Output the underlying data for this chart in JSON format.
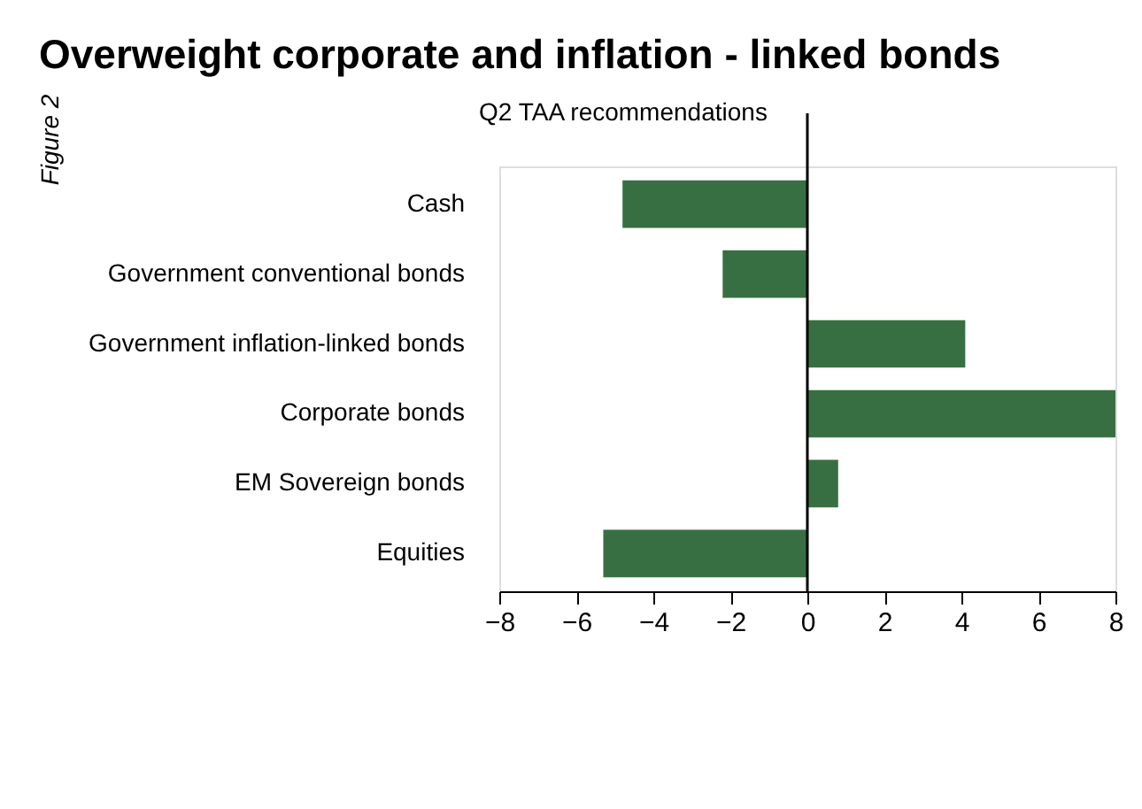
{
  "chart_data": {
    "type": "bar",
    "orientation": "horizontal",
    "title": "Overweight corporate and inflation - linked bonds",
    "subtitle": "Q2 TAA recommendations",
    "annotations": [
      "Figure 2"
    ],
    "categories": [
      "Cash",
      "Government conventional bonds",
      "Government inflation-linked bonds",
      "Corporate bonds",
      "EM Sovereign bonds",
      "Equities"
    ],
    "values": [
      -4.8,
      -2.2,
      4.1,
      8.0,
      0.8,
      -5.3
    ],
    "color": "#386f42",
    "xlim": [
      -8,
      8
    ],
    "xticks": [
      -8,
      -6,
      -4,
      -2,
      0,
      2,
      4,
      6,
      8
    ],
    "ref_lines": [
      {
        "axis": "x",
        "value": 0,
        "color": "#000000"
      }
    ],
    "grid": false
  }
}
